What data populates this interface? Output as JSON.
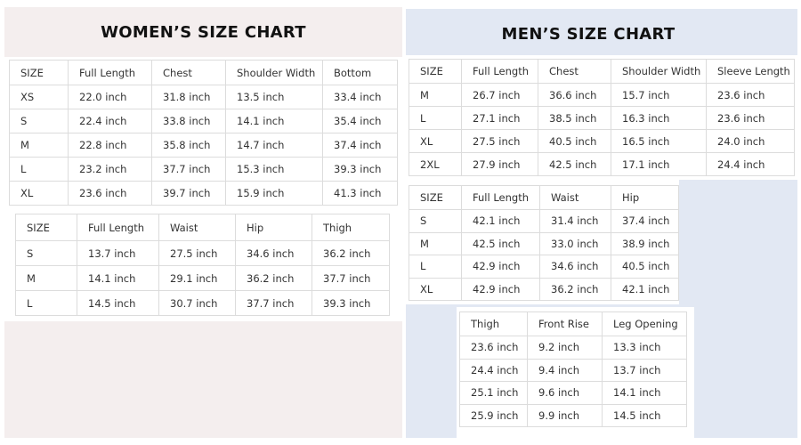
{
  "women": {
    "title": "WOMEN’S SIZE CHART",
    "tables": [
      {
        "header": [
          "SIZE",
          "Full Length",
          "Chest",
          "Shoulder Width",
          "Bottom"
        ],
        "rows": [
          [
            "XS",
            "22.0 inch",
            "31.8 inch",
            "13.5 inch",
            "33.4 inch"
          ],
          [
            "S",
            "22.4 inch",
            "33.8 inch",
            "14.1 inch",
            "35.4 inch"
          ],
          [
            "M",
            "22.8 inch",
            "35.8 inch",
            "14.7 inch",
            "37.4 inch"
          ],
          [
            "L",
            "23.2 inch",
            "37.7 inch",
            "15.3 inch",
            "39.3 inch"
          ],
          [
            "XL",
            "23.6 inch",
            "39.7 inch",
            "15.9 inch",
            "41.3 inch"
          ]
        ]
      },
      {
        "header": [
          "SIZE",
          "Full Length",
          "Waist",
          "Hip",
          "Thigh"
        ],
        "rows": [
          [
            "S",
            "13.7 inch",
            "27.5 inch",
            "34.6 inch",
            "36.2 inch"
          ],
          [
            "M",
            "14.1 inch",
            "29.1 inch",
            "36.2 inch",
            "37.7 inch"
          ],
          [
            "L",
            "14.5 inch",
            "30.7 inch",
            "37.7 inch",
            "39.3 inch"
          ]
        ]
      }
    ]
  },
  "men": {
    "title": "MEN’S SIZE CHART",
    "tables": [
      {
        "header": [
          "SIZE",
          "Full Length",
          "Chest",
          "Shoulder Width",
          "Sleeve Length"
        ],
        "rows": [
          [
            "M",
            "26.7 inch",
            "36.6 inch",
            "15.7 inch",
            "23.6 inch"
          ],
          [
            "L",
            "27.1 inch",
            "38.5 inch",
            "16.3 inch",
            "23.6 inch"
          ],
          [
            "XL",
            "27.5 inch",
            "40.5 inch",
            "16.5 inch",
            "24.0 inch"
          ],
          [
            "2XL",
            "27.9 inch",
            "42.5 inch",
            "17.1 inch",
            "24.4 inch"
          ]
        ]
      },
      {
        "header": [
          "SIZE",
          "Full Length",
          "Waist",
          "Hip"
        ],
        "rows": [
          [
            "S",
            "42.1 inch",
            "31.4 inch",
            "37.4 inch"
          ],
          [
            "M",
            "42.5 inch",
            "33.0 inch",
            "38.9 inch"
          ],
          [
            "L",
            "42.9 inch",
            "34.6 inch",
            "40.5 inch"
          ],
          [
            "XL",
            "42.9 inch",
            "36.2 inch",
            "42.1 inch"
          ]
        ]
      },
      {
        "header": [
          "Thigh",
          "Front Rise",
          "Leg Opening"
        ],
        "rows": [
          [
            "23.6 inch",
            "9.2 inch",
            "13.3 inch"
          ],
          [
            "24.4 inch",
            "9.4 inch",
            "13.7 inch"
          ],
          [
            "25.1 inch",
            "9.6 inch",
            "14.1 inch"
          ],
          [
            "25.9 inch",
            "9.9 inch",
            "14.5 inch"
          ]
        ]
      }
    ]
  }
}
